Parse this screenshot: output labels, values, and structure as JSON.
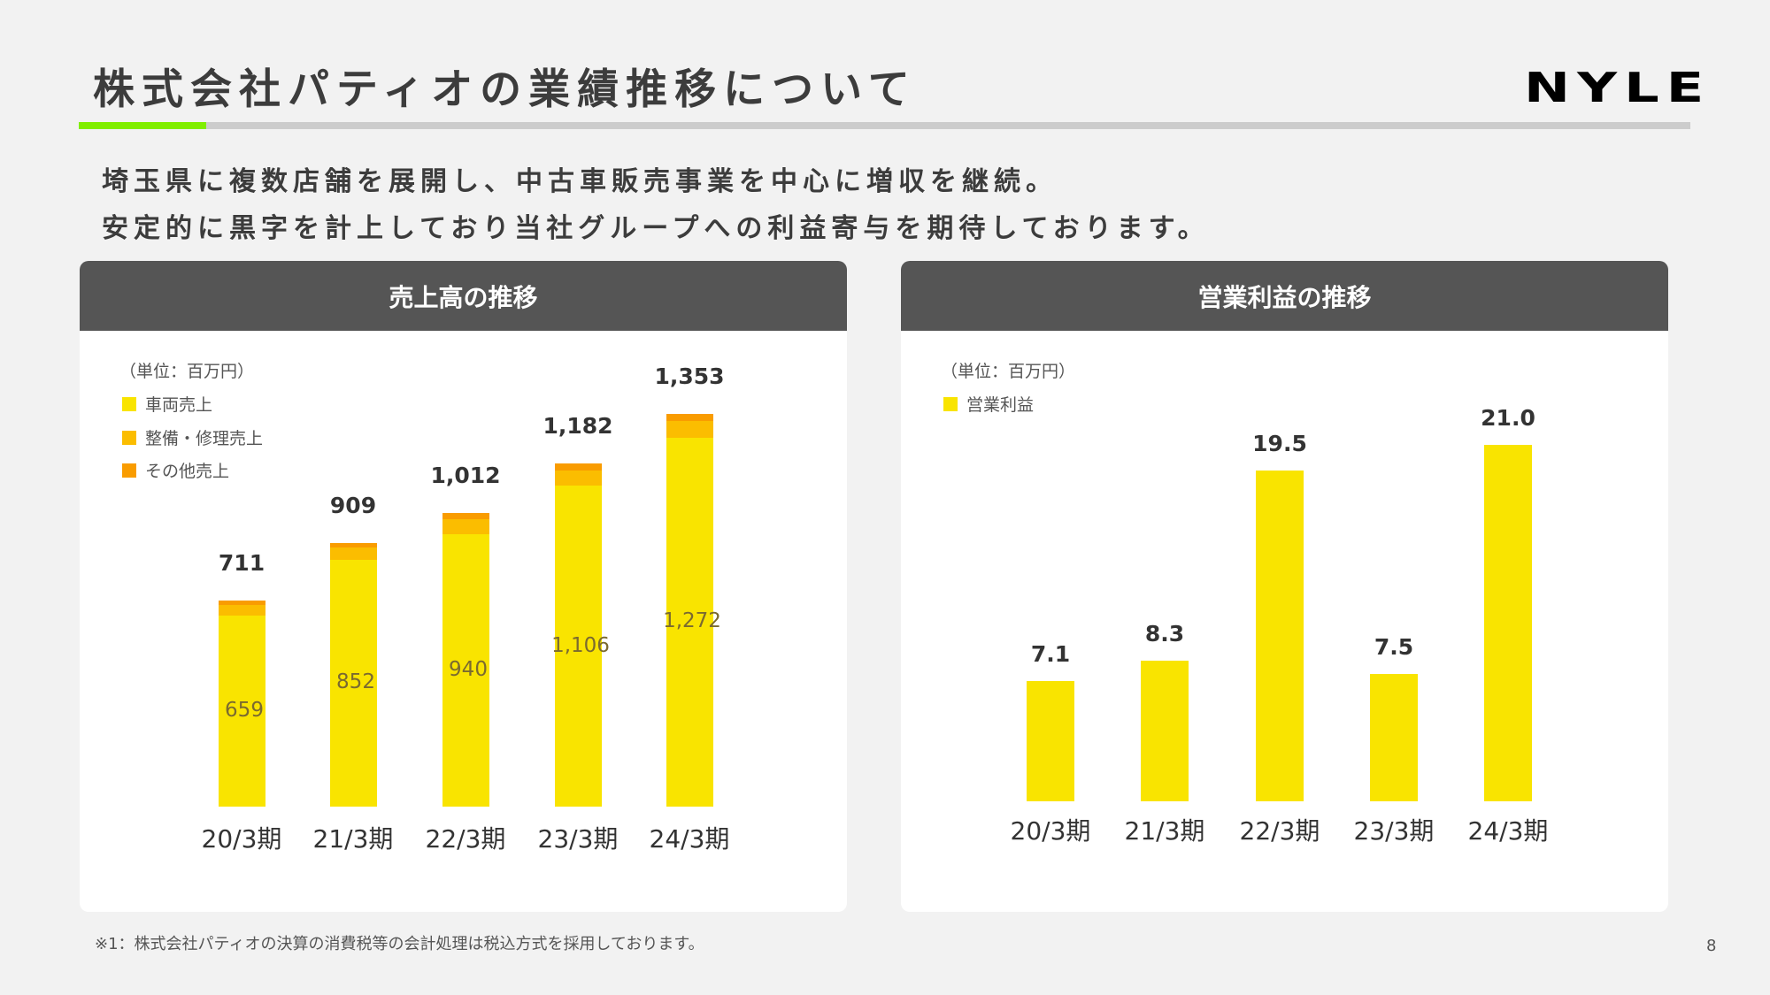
{
  "header": {
    "title": "株式会社パティオの業績推移について",
    "logo": "NYLE"
  },
  "lead": [
    "埼玉県に複数店舗を展開し、中古車販売事業を中心に増収を継続。",
    "安定的に黒字を計上しており当社グループへの利益寄与を期待しております。"
  ],
  "colors": {
    "vehicle": "#f9e400",
    "maintenance": "#fbbd00",
    "other": "#f99c00",
    "accent": "#80ee00",
    "panel_header": "#555555"
  },
  "chart_data": [
    {
      "type": "bar",
      "stacked": true,
      "title": "売上高の推移",
      "unit": "（単位：百万円）",
      "categories": [
        "20/3期",
        "21/3期",
        "22/3期",
        "23/3期",
        "24/3期"
      ],
      "totals": [
        "711",
        "909",
        "1,012",
        "1,182",
        "1,353"
      ],
      "total_values": [
        711,
        909,
        1012,
        1182,
        1353
      ],
      "series": [
        {
          "name": "車両売上",
          "values": [
            659,
            852,
            940,
            1106,
            1272
          ],
          "labels": [
            "659",
            "852",
            "940",
            "1,106",
            "1,272"
          ],
          "color": "#f9e400"
        },
        {
          "name": "整備・修理売上",
          "values": [
            35,
            41,
            51,
            53,
            58
          ],
          "color": "#fbbd00"
        },
        {
          "name": "その他売上",
          "values": [
            17,
            16,
            21,
            23,
            23
          ],
          "color": "#f99c00"
        }
      ],
      "legend": "top-left",
      "grid": false
    },
    {
      "type": "bar",
      "title": "営業利益の推移",
      "unit": "（単位：百万円）",
      "categories": [
        "20/3期",
        "21/3期",
        "22/3期",
        "23/3期",
        "24/3期"
      ],
      "series": [
        {
          "name": "営業利益",
          "values": [
            7.1,
            8.3,
            19.5,
            7.5,
            21.0
          ],
          "labels": [
            "7.1",
            "8.3",
            "19.5",
            "7.5",
            "21.0"
          ],
          "color": "#f9e400"
        }
      ],
      "legend": "top-left",
      "grid": false
    }
  ],
  "footer": {
    "note": "※1：株式会社パティオの決算の消費税等の会計処理は税込方式を採用しております。",
    "page": "8"
  }
}
